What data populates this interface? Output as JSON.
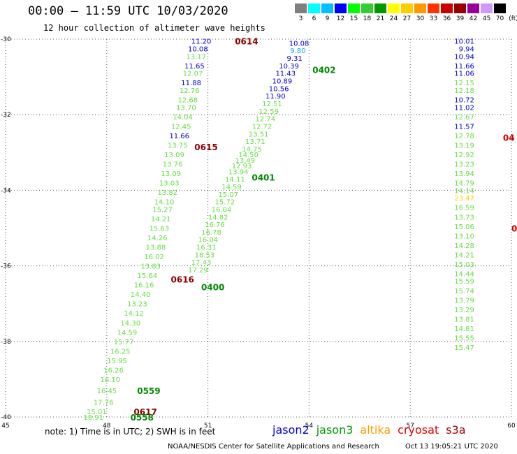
{
  "header": {
    "title": "00:00 – 11:59 UTC 10/03/2020",
    "subtitle": "12 hour collection of altimeter wave heights",
    "legend_bins": [
      "3",
      "6",
      "9",
      "12",
      "15",
      "18",
      "21",
      "24",
      "27",
      "30",
      "33",
      "36",
      "39",
      "42",
      "45",
      "70"
    ],
    "legend_unit": "(ft)",
    "legend_colors": [
      "#7f7f7f",
      "#00ffff",
      "#00bfff",
      "#0000ff",
      "#00ff00",
      "#33cc33",
      "#009900",
      "#ffff00",
      "#ffcc00",
      "#ff9900",
      "#ff3300",
      "#cc0000",
      "#990000",
      "#990099",
      "#cc99ff",
      "#000000"
    ]
  },
  "footer": {
    "note": "note: 1) Time is in UTC; 2) SWH is in feet",
    "satellites": [
      {
        "name": "jason2",
        "color": "#0000dd"
      },
      {
        "name": "jason3",
        "color": "#009900"
      },
      {
        "name": "altika",
        "color": "#ff9900"
      },
      {
        "name": "cryosat",
        "color": "#dd0000"
      },
      {
        "name": "s3a",
        "color": "#990000"
      }
    ],
    "credit": "NOAA/NESDIS Center for Satellite Applications and Research",
    "timestamp": "Oct 13 19:05:21 UTC 2020"
  },
  "chart_data": {
    "type": "scatter",
    "title": "00:00 – 11:59 UTC 10/03/2020",
    "subtitle": "12 hour collection of altimeter wave heights",
    "xlabel": "",
    "ylabel": "",
    "xlim": [
      45,
      60
    ],
    "ylim": [
      -40,
      -30
    ],
    "x_ticks": [
      "45",
      "48",
      "51",
      "54",
      "57",
      "60"
    ],
    "y_ticks": [
      "-30",
      "-32",
      "-34",
      "-36",
      "-38",
      "-40"
    ],
    "grid": true,
    "tracks": [
      {
        "satellite": "jason3",
        "label": "0402",
        "color": "#008800",
        "label_pos": [
          54.1,
          -30.8
        ],
        "points": [
          [
            54.0,
            -30.1,
            "10.08",
            "#0000cc"
          ],
          [
            53.9,
            -30.3,
            "9.80",
            "#00aaff"
          ],
          [
            53.8,
            -30.5,
            "9.31",
            "#0000cc"
          ],
          [
            53.7,
            -30.7,
            "10.39",
            "#0000cc"
          ],
          [
            53.6,
            -30.9,
            "11.43",
            "#0000cc"
          ],
          [
            53.5,
            -31.1,
            "10.89",
            "#0000cc"
          ],
          [
            53.4,
            -31.3,
            "10.56",
            "#0000cc"
          ],
          [
            53.3,
            -31.5,
            "11.90",
            "#0000cc"
          ],
          [
            53.2,
            -31.7,
            "12.51",
            "#66dd44"
          ],
          [
            53.1,
            -31.9,
            "12.59",
            "#66dd44"
          ],
          [
            53.0,
            -32.1,
            "12.74",
            "#66dd44"
          ],
          [
            52.9,
            -32.3,
            "12.72",
            "#66dd44"
          ],
          [
            52.8,
            -32.5,
            "13.51",
            "#66dd44"
          ],
          [
            52.7,
            -32.7,
            "13.71",
            "#66dd44"
          ],
          [
            52.6,
            -32.9,
            "14.75",
            "#66dd44"
          ],
          [
            52.5,
            -33.05,
            "14.50",
            "#66dd44"
          ],
          [
            52.4,
            -33.2,
            "13.49",
            "#66dd44"
          ],
          [
            52.3,
            -33.35,
            "12.93",
            "#66dd44"
          ],
          [
            52.2,
            -33.5,
            "13.94",
            "#66dd44"
          ],
          [
            52.1,
            -33.7,
            "14.11",
            "#66dd44"
          ],
          [
            52.0,
            -33.9,
            "14.59",
            "#66dd44"
          ],
          [
            51.9,
            -34.1,
            "15.07",
            "#66dd44"
          ],
          [
            51.8,
            -34.3,
            "15.72",
            "#66dd44"
          ],
          [
            51.7,
            -34.5,
            "16.04",
            "#66dd44"
          ],
          [
            51.6,
            -34.7,
            "14.82",
            "#66dd44"
          ],
          [
            51.5,
            -34.9,
            "16.76",
            "#66dd44"
          ],
          [
            51.4,
            -35.1,
            "16.78",
            "#66dd44"
          ],
          [
            51.3,
            -35.3,
            "16.04",
            "#66dd44"
          ],
          [
            51.25,
            -35.5,
            "16.31",
            "#66dd44"
          ],
          [
            51.2,
            -35.7,
            "18.53",
            "#66dd44"
          ],
          [
            51.1,
            -35.9,
            "17.43",
            "#66dd44"
          ],
          [
            51.0,
            -36.1,
            "17.29",
            "#66dd44"
          ]
        ]
      },
      {
        "satellite": "jason3",
        "label": "0401",
        "color": "#008800",
        "label_pos": [
          52.3,
          -33.65
        ],
        "points": []
      },
      {
        "satellite": "jason3",
        "label": "0400",
        "color": "#008800",
        "label_pos": [
          50.8,
          -36.55
        ],
        "points": []
      },
      {
        "satellite": "s3a",
        "label": "0614",
        "color": "#880000",
        "label_pos": [
          51.8,
          -30.05
        ],
        "points": [
          [
            51.1,
            -30.05,
            "11.20",
            "#0000cc"
          ],
          [
            51.0,
            -30.25,
            "10.08",
            "#0000cc"
          ],
          [
            50.95,
            -30.45,
            "13.17",
            "#66dd44"
          ],
          [
            50.9,
            -30.7,
            "11.65",
            "#0000cc"
          ],
          [
            50.85,
            -30.9,
            "12.07",
            "#66dd44"
          ],
          [
            50.8,
            -31.15,
            "11.88",
            "#0000cc"
          ],
          [
            50.75,
            -31.35,
            "12.76",
            "#66dd44"
          ],
          [
            50.7,
            -31.6,
            "12.68",
            "#66dd44"
          ],
          [
            50.65,
            -31.8,
            "13.70",
            "#66dd44"
          ],
          [
            50.55,
            -32.05,
            "14.04",
            "#66dd44"
          ],
          [
            50.5,
            -32.3,
            "12.45",
            "#66dd44"
          ],
          [
            50.45,
            -32.55,
            "11.66",
            "#0000cc"
          ],
          [
            50.4,
            -32.8,
            "13.75",
            "#66dd44"
          ],
          [
            50.3,
            -33.05,
            "13.09",
            "#66dd44"
          ],
          [
            50.25,
            -33.3,
            "13.76",
            "#66dd44"
          ],
          [
            50.2,
            -33.55,
            "13.09",
            "#66dd44"
          ],
          [
            50.15,
            -33.8,
            "13.03",
            "#66dd44"
          ],
          [
            50.1,
            -34.05,
            "13.82",
            "#66dd44"
          ],
          [
            50.0,
            -34.3,
            "14.10",
            "#66dd44"
          ],
          [
            49.95,
            -34.5,
            "15.27",
            "#66dd44"
          ],
          [
            49.9,
            -34.75,
            "14.21",
            "#66dd44"
          ],
          [
            49.85,
            -35.0,
            "15.63",
            "#66dd44"
          ],
          [
            49.8,
            -35.25,
            "14.26",
            "#66dd44"
          ],
          [
            49.75,
            -35.5,
            "13.88",
            "#66dd44"
          ],
          [
            49.7,
            -35.75,
            "16.02",
            "#66dd44"
          ],
          [
            49.6,
            -36.0,
            "13.83",
            "#66dd44"
          ],
          [
            49.5,
            -36.25,
            "15.64",
            "#66dd44"
          ],
          [
            49.4,
            -36.5,
            "16.16",
            "#66dd44"
          ],
          [
            49.3,
            -36.75,
            "14.40",
            "#66dd44"
          ],
          [
            49.2,
            -37.0,
            "13.23",
            "#66dd44"
          ],
          [
            49.1,
            -37.25,
            "14.12",
            "#66dd44"
          ],
          [
            49.0,
            -37.5,
            "14.30",
            "#66dd44"
          ],
          [
            48.9,
            -37.75,
            "14.59",
            "#66dd44"
          ],
          [
            48.8,
            -38.0,
            "15.77",
            "#66dd44"
          ],
          [
            48.7,
            -38.25,
            "16.25",
            "#66dd44"
          ],
          [
            48.6,
            -38.5,
            "15.95",
            "#66dd44"
          ],
          [
            48.5,
            -38.75,
            "16.26",
            "#66dd44"
          ],
          [
            48.4,
            -39.0,
            "16.10",
            "#66dd44"
          ],
          [
            48.3,
            -39.3,
            "16.45",
            "#66dd44"
          ],
          [
            48.2,
            -39.6,
            "17.76",
            "#66dd44"
          ],
          [
            48.0,
            -39.85,
            "15.01",
            "#66dd44"
          ],
          [
            47.9,
            -40.0,
            "18.91",
            "#66dd44"
          ]
        ]
      },
      {
        "satellite": "s3a",
        "label": "0615",
        "color": "#880000",
        "label_pos": [
          50.6,
          -32.85
        ],
        "points": []
      },
      {
        "satellite": "s3a",
        "label": "0616",
        "color": "#880000",
        "label_pos": [
          49.9,
          -36.35
        ],
        "points": []
      },
      {
        "satellite": "s3a",
        "label": "0617",
        "color": "#880000",
        "label_pos": [
          48.8,
          -39.85
        ],
        "points": []
      },
      {
        "satellite": "jason3",
        "label": "0559",
        "color": "#008800",
        "label_pos": [
          48.9,
          -39.3
        ],
        "points": []
      },
      {
        "satellite": "jason3",
        "label": "0558",
        "color": "#008800",
        "label_pos": [
          48.7,
          -40.0
        ],
        "points": []
      },
      {
        "satellite": "cryosat",
        "label": "0",
        "color": "#cc0000",
        "label_pos": [
          60.0,
          -35.0
        ],
        "points": []
      },
      {
        "satellite": "cryosat",
        "label": "04",
        "color": "#cc0000",
        "label_pos": [
          59.75,
          -32.6
        ],
        "points": []
      },
      {
        "satellite": "unknown",
        "label": "",
        "color": "#000000",
        "label_pos": [
          59.0,
          -30.1
        ],
        "points": [
          [
            58.9,
            -30.05,
            "10.01",
            "#0000cc"
          ],
          [
            58.9,
            -30.25,
            "9.94",
            "#0000cc"
          ],
          [
            58.9,
            -30.45,
            "10.94",
            "#0000cc"
          ],
          [
            58.9,
            -30.7,
            "11.66",
            "#0000cc"
          ],
          [
            58.9,
            -30.9,
            "11.06",
            "#0000cc"
          ],
          [
            58.9,
            -31.15,
            "12.15",
            "#66dd44"
          ],
          [
            58.9,
            -31.35,
            "12.18",
            "#66dd44"
          ],
          [
            58.9,
            -31.6,
            "10.72",
            "#0000cc"
          ],
          [
            58.9,
            -31.8,
            "11.02",
            "#0000cc"
          ],
          [
            58.9,
            -32.05,
            "12.67",
            "#66dd44"
          ],
          [
            58.9,
            -32.3,
            "11.57",
            "#0000cc"
          ],
          [
            58.9,
            -32.55,
            "12.78",
            "#66dd44"
          ],
          [
            58.9,
            -32.8,
            "13.19",
            "#66dd44"
          ],
          [
            58.9,
            -33.05,
            "12.92",
            "#66dd44"
          ],
          [
            58.9,
            -33.3,
            "13.23",
            "#66dd44"
          ],
          [
            58.9,
            -33.55,
            "13.94",
            "#66dd44"
          ],
          [
            58.9,
            -33.8,
            "14.79",
            "#66dd44"
          ],
          [
            58.9,
            -34.0,
            "14.14",
            "#66dd44"
          ],
          [
            58.9,
            -34.2,
            "23.47",
            "#ffcc00"
          ],
          [
            58.9,
            -34.45,
            "16.59",
            "#66dd44"
          ],
          [
            58.9,
            -34.7,
            "13.73",
            "#66dd44"
          ],
          [
            58.9,
            -34.95,
            "15.06",
            "#66dd44"
          ],
          [
            58.9,
            -35.2,
            "13.10",
            "#66dd44"
          ],
          [
            58.9,
            -35.45,
            "14.28",
            "#66dd44"
          ],
          [
            58.9,
            -35.7,
            "14.21",
            "#66dd44"
          ],
          [
            58.9,
            -35.95,
            "15.03",
            "#66dd44"
          ],
          [
            58.9,
            -36.2,
            "14.44",
            "#66dd44"
          ],
          [
            58.9,
            -36.4,
            "15.59",
            "#66dd44"
          ],
          [
            58.9,
            -36.65,
            "15.74",
            "#66dd44"
          ],
          [
            58.9,
            -36.9,
            "13.79",
            "#66dd44"
          ],
          [
            58.9,
            -37.15,
            "13.29",
            "#66dd44"
          ],
          [
            58.9,
            -37.4,
            "13.81",
            "#66dd44"
          ],
          [
            58.9,
            -37.65,
            "14.81",
            "#66dd44"
          ],
          [
            58.9,
            -37.9,
            "15.55",
            "#66dd44"
          ],
          [
            58.9,
            -38.15,
            "15.47",
            "#66dd44"
          ]
        ]
      }
    ]
  }
}
